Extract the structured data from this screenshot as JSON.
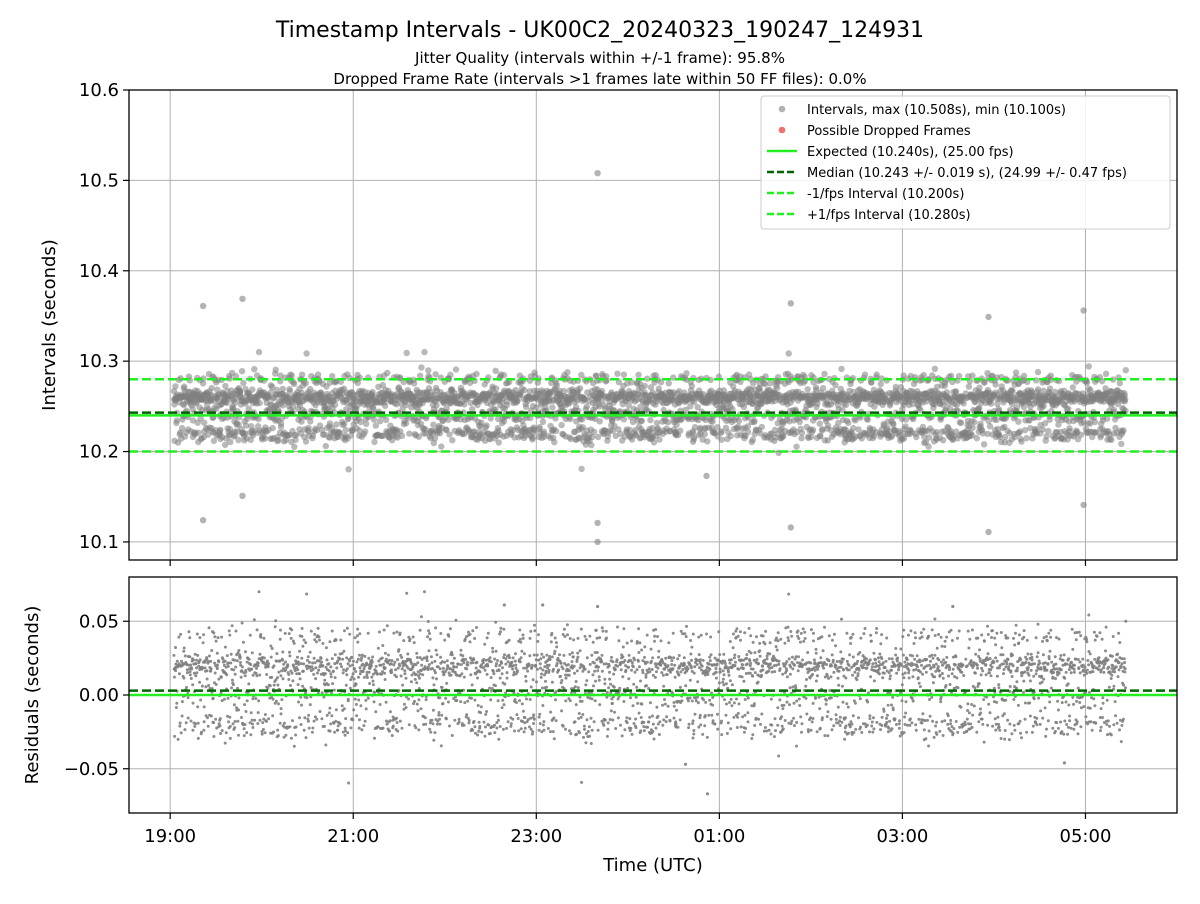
{
  "chart_data": {
    "title": "Timestamp Intervals - UK00C2_20240323_190247_124931",
    "subtitle_lines": [
      "Jitter Quality (intervals within +/-1 frame): 95.8%",
      "Dropped Frame Rate (intervals >1 frames late within 50 FF files): 0.0%"
    ],
    "xlabel": "Time (UTC)",
    "x_ticks": [
      {
        "hour": 19,
        "label": "19:00"
      },
      {
        "hour": 21,
        "label": "21:00"
      },
      {
        "hour": 23,
        "label": "23:00"
      },
      {
        "hour": 25,
        "label": "01:00"
      },
      {
        "hour": 27,
        "label": "03:00"
      },
      {
        "hour": 29,
        "label": "05:00"
      }
    ],
    "x_range_hours": [
      18.55,
      30.0
    ],
    "data_time_range_hours": [
      19.04,
      29.44
    ],
    "panels": [
      {
        "name": "intervals",
        "type": "scatter",
        "ylabel": "Intervals (seconds)",
        "ylim": [
          10.08,
          10.6
        ],
        "y_ticks": [
          "10.1",
          "10.2",
          "10.3",
          "10.4",
          "10.5",
          "10.6"
        ],
        "grid": true,
        "legend_position": "top-right",
        "reference_lines": [
          {
            "label": "Expected (10.240s), (25.00 fps)",
            "y": 10.24,
            "style": "solid",
            "color": "#22ee22"
          },
          {
            "label": "Median (10.243 +/- 0.019 s), (24.99 +/- 0.47 fps)",
            "y": 10.243,
            "style": "dashed",
            "color": "#006400"
          },
          {
            "label": "-1/fps Interval (10.200s)",
            "y": 10.2,
            "style": "dashed",
            "color": "#22ee22"
          },
          {
            "label": "+1/fps Interval (10.280s)",
            "y": 10.28,
            "style": "dashed",
            "color": "#22ee22"
          }
        ],
        "scatter_series": [
          {
            "label": "Intervals, max (10.508s), min (10.100s)",
            "color": "#808080",
            "max": 10.508,
            "min": 10.1
          },
          {
            "label": "Possible Dropped Frames",
            "color": "#ee3333",
            "count": 0
          }
        ],
        "bands": [
          {
            "center": 10.26,
            "spread": 0.008,
            "weight": 0.5
          },
          {
            "center": 10.24,
            "spread": 0.008,
            "weight": 0.18
          },
          {
            "center": 10.22,
            "spread": 0.008,
            "weight": 0.22
          },
          {
            "center": 10.28,
            "spread": 0.006,
            "weight": 0.1
          }
        ],
        "outliers": [
          {
            "t": 19.36,
            "y": 10.361
          },
          {
            "t": 19.36,
            "y": 10.124
          },
          {
            "t": 19.79,
            "y": 10.369
          },
          {
            "t": 19.79,
            "y": 10.151
          },
          {
            "t": 23.67,
            "y": 10.508
          },
          {
            "t": 23.67,
            "y": 10.121
          },
          {
            "t": 23.67,
            "y": 10.1
          },
          {
            "t": 24.86,
            "y": 10.173
          },
          {
            "t": 25.78,
            "y": 10.364
          },
          {
            "t": 25.78,
            "y": 10.116
          },
          {
            "t": 27.94,
            "y": 10.349
          },
          {
            "t": 27.94,
            "y": 10.111
          },
          {
            "t": 28.98,
            "y": 10.356
          },
          {
            "t": 28.98,
            "y": 10.141
          }
        ]
      },
      {
        "name": "residuals",
        "type": "scatter",
        "ylabel": "Residuals (seconds)",
        "ylim": [
          -0.08,
          0.08
        ],
        "y_ticks": [
          "0.05",
          "0.00",
          "−0.05"
        ],
        "grid": true,
        "reference_lines": [
          {
            "y": 0.0,
            "style": "solid",
            "color": "#22ee22"
          },
          {
            "y": 0.003,
            "style": "dashed",
            "color": "#006400"
          }
        ],
        "outliers": [
          {
            "t": 24.87,
            "y": -0.067
          },
          {
            "t": 24.63,
            "y": -0.047
          },
          {
            "t": 28.77,
            "y": -0.046
          },
          {
            "t": 22.65,
            "y": 0.061
          },
          {
            "t": 23.07,
            "y": 0.061
          },
          {
            "t": 23.67,
            "y": 0.06
          },
          {
            "t": 27.55,
            "y": 0.06
          }
        ]
      }
    ]
  }
}
